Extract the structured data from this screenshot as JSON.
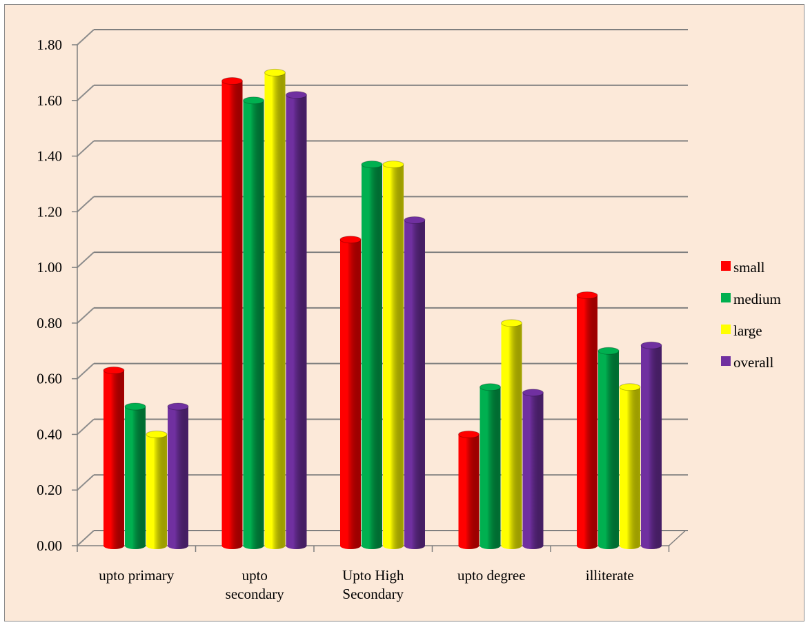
{
  "chart_data": {
    "type": "bar",
    "categories": [
      "upto primary",
      "upto secondary",
      "Upto High Secondary",
      "upto degree",
      "illiterate"
    ],
    "category_lines": [
      [
        "upto primary"
      ],
      [
        "upto",
        "secondary"
      ],
      [
        "Upto High",
        "Secondary"
      ],
      [
        "upto degree"
      ],
      [
        "illiterate"
      ]
    ],
    "series": [
      {
        "name": "small",
        "color": "#ff0000",
        "values": [
          0.63,
          1.67,
          1.1,
          0.4,
          0.9
        ]
      },
      {
        "name": "medium",
        "color": "#00b050",
        "values": [
          0.5,
          1.6,
          1.37,
          0.57,
          0.7
        ]
      },
      {
        "name": "large",
        "color": "#ffff00",
        "values": [
          0.4,
          1.7,
          1.37,
          0.8,
          0.57
        ]
      },
      {
        "name": "overall",
        "color": "#7030a0",
        "values": [
          0.5,
          1.62,
          1.17,
          0.55,
          0.72
        ]
      }
    ],
    "yticks": [
      "0.00",
      "0.20",
      "0.40",
      "0.60",
      "0.80",
      "1.00",
      "1.20",
      "1.40",
      "1.60",
      "1.80"
    ],
    "ylim": [
      0,
      1.8
    ],
    "style": "3d-cylinder",
    "grid": true,
    "legend": "right"
  }
}
